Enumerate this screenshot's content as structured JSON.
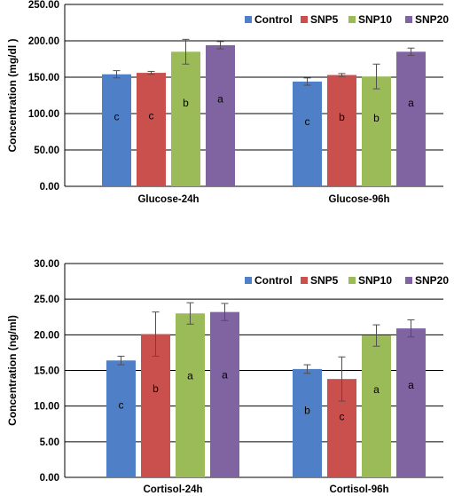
{
  "colors": {
    "Control": "#4f7fc6",
    "SNP5": "#c9504d",
    "SNP10": "#9bbb59",
    "SNP20": "#8064a2"
  },
  "chart_data": [
    {
      "type": "bar",
      "title": "",
      "xlabel": "",
      "ylabel": "Concentration (mg/dl )",
      "ylim": [
        0,
        250
      ],
      "yticks": [
        "0.00",
        "50.00",
        "100.00",
        "150.00",
        "200.00",
        "250.00"
      ],
      "legend_position": "top-right",
      "categories": [
        "Glucose-24h",
        "Glucose-96h"
      ],
      "series": [
        {
          "name": "Control",
          "values": [
            154,
            144
          ],
          "errors": [
            5,
            5
          ],
          "labels": [
            "c",
            "c"
          ]
        },
        {
          "name": "SNP5",
          "values": [
            156,
            153
          ],
          "errors": [
            2,
            2
          ],
          "labels": [
            "c",
            "b"
          ]
        },
        {
          "name": "SNP10",
          "values": [
            185,
            151
          ],
          "errors": [
            17,
            17
          ],
          "labels": [
            "b",
            "b"
          ]
        },
        {
          "name": "SNP20",
          "values": [
            194,
            185
          ],
          "errors": [
            5,
            5
          ],
          "labels": [
            "a",
            "a"
          ]
        }
      ]
    },
    {
      "type": "bar",
      "title": "",
      "xlabel": "",
      "ylabel": "Concentration (ng/ml)",
      "ylim": [
        0,
        30
      ],
      "yticks": [
        "0.00",
        "5.00",
        "10.00",
        "15.00",
        "20.00",
        "25.00",
        "30.00"
      ],
      "legend_position": "top-right",
      "categories": [
        "Cortisol-24h",
        "Cortisol-96h"
      ],
      "series": [
        {
          "name": "Control",
          "values": [
            16.4,
            15.2
          ],
          "errors": [
            0.6,
            0.6
          ],
          "labels": [
            "c",
            "b"
          ]
        },
        {
          "name": "SNP5",
          "values": [
            20.1,
            13.8
          ],
          "errors": [
            3.1,
            3.1
          ],
          "labels": [
            "b",
            "c"
          ]
        },
        {
          "name": "SNP10",
          "values": [
            23.0,
            19.9
          ],
          "errors": [
            1.5,
            1.5
          ],
          "labels": [
            "a",
            "a"
          ]
        },
        {
          "name": "SNP20",
          "values": [
            23.2,
            20.9
          ],
          "errors": [
            1.2,
            1.2
          ],
          "labels": [
            "a",
            "a"
          ]
        }
      ]
    }
  ]
}
